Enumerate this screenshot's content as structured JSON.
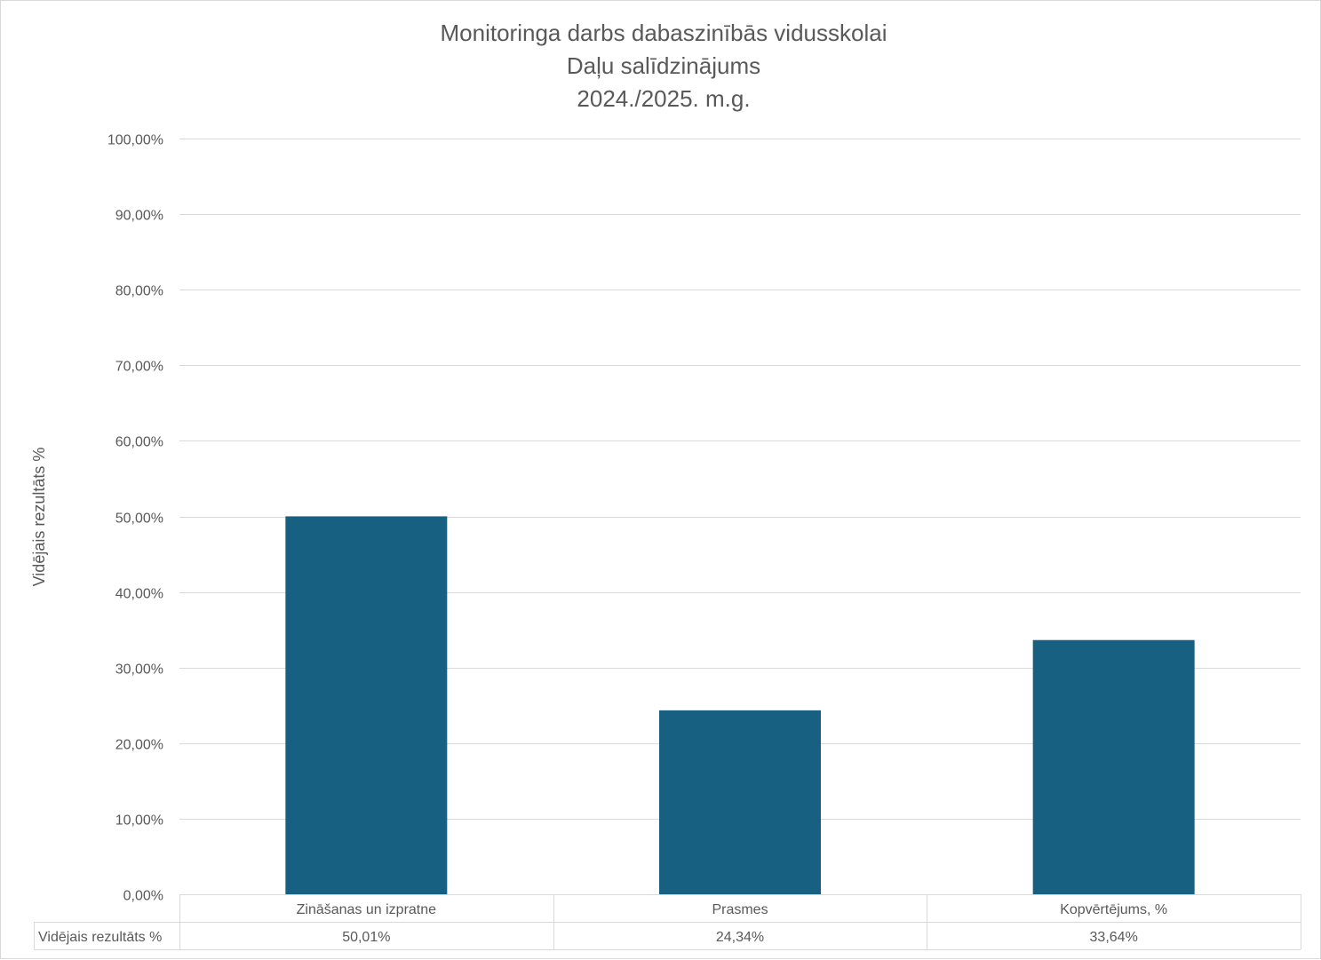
{
  "chart_data": {
    "type": "bar",
    "title": [
      "Monitoringa darbs dabaszinībās vidusskolai",
      "Daļu salīdzinājums",
      "2024./2025. m.g."
    ],
    "ylabel": "Vidējais rezultāts %",
    "ylim": [
      0,
      100
    ],
    "yticks": [
      0,
      10,
      20,
      30,
      40,
      50,
      60,
      70,
      80,
      90,
      100
    ],
    "ytick_labels": [
      "0,00%",
      "10,00%",
      "20,00%",
      "30,00%",
      "40,00%",
      "50,00%",
      "60,00%",
      "70,00%",
      "80,00%",
      "90,00%",
      "100,00%"
    ],
    "categories": [
      "Zināšanas un izpratne",
      "Prasmes",
      "Kopvērtējums, %"
    ],
    "series": [
      {
        "name": "Vidējais rezultāts %",
        "values": [
          50.01,
          24.34,
          33.64
        ],
        "value_labels": [
          "50,01%",
          "24,34%",
          "33,64%"
        ],
        "color": "#176082"
      }
    ],
    "grid": true,
    "data_table": true,
    "colors": {
      "gridline": "#d9d9d9",
      "text": "#595959",
      "bar": "#176082"
    }
  }
}
